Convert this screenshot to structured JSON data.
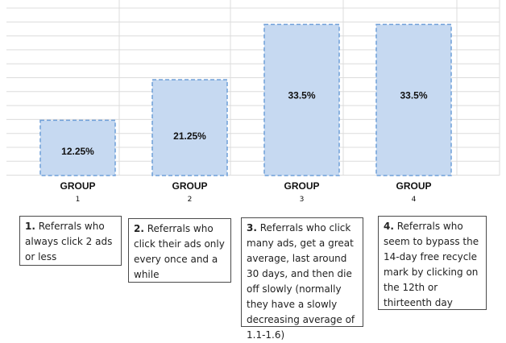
{
  "chart_data": {
    "type": "bar",
    "categories": [
      "GROUP 1",
      "GROUP 2",
      "GROUP 3",
      "GROUP 4"
    ],
    "group_word": "GROUP",
    "group_numbers": [
      "1",
      "2",
      "3",
      "4"
    ],
    "values": [
      12.25,
      21.25,
      33.5,
      33.5
    ],
    "value_labels": [
      "12.25%",
      "21.25%",
      "33.5%",
      "33.5%"
    ],
    "grid": true,
    "colors": {
      "bar_fill": "#c6d9f1",
      "bar_border": "#6f9fd8",
      "grid": "#dcdcdc"
    }
  },
  "notes": [
    {
      "num": "1.",
      "text": " Referrals who always click 2 ads or less"
    },
    {
      "num": "2.",
      "text": " Referrals who click their ads only every once and a while"
    },
    {
      "num": "3.",
      "text": " Referrals who click many ads, get a great average, last around 30 days, and then die off slowly (normally they have a slowly decreasing average of 1.1-1.6)"
    },
    {
      "num": "4.",
      "text": " Referrals who seem to bypass the 14-day free recycle mark by clicking on the 12th or thirteenth day"
    }
  ]
}
